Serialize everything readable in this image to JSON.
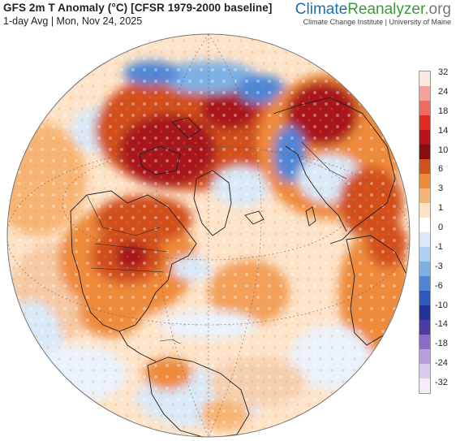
{
  "header": {
    "title": "GFS 2m T Anomaly (°C) [CFSR 1979-2000 baseline]",
    "subtitle": "1-day Avg | Mon, Nov 24, 2025"
  },
  "brand": {
    "part1": "Climate",
    "part2": "Reanalyzer",
    "part3": ".org",
    "credit": "Climate Change Institute | University of Maine"
  },
  "colorbar": {
    "ticks": [
      "32",
      "24",
      "18",
      "14",
      "10",
      "6",
      "3",
      "1",
      "0",
      "-1",
      "-3",
      "-6",
      "-10",
      "-14",
      "-18",
      "-24",
      "-32"
    ],
    "colors": [
      "#fde8e4",
      "#f5a39a",
      "#ee6a5e",
      "#e02a22",
      "#b9121a",
      "#8a0c10",
      "#d2501a",
      "#ee8a3a",
      "#f7b575",
      "#fde2c6",
      "#ffffff",
      "#d9e9f8",
      "#aed0f0",
      "#7db1e6",
      "#4d86d6",
      "#2d58bf",
      "#23329a",
      "#4b3aa8",
      "#8a6cc8",
      "#b99ee0",
      "#dccbf0",
      "#f3ebfa"
    ]
  },
  "map": {
    "projection": "orthographic",
    "center": "North Atlantic / North America",
    "colors": {
      "ocean_base": "#fde3c8",
      "land_warm": "#ee8a3a",
      "hot": "#d2501a",
      "very_hot": "#a8121a",
      "cold": "#7db1e6",
      "very_cold": "#2d58bf",
      "border": "#1e1e1e"
    }
  }
}
